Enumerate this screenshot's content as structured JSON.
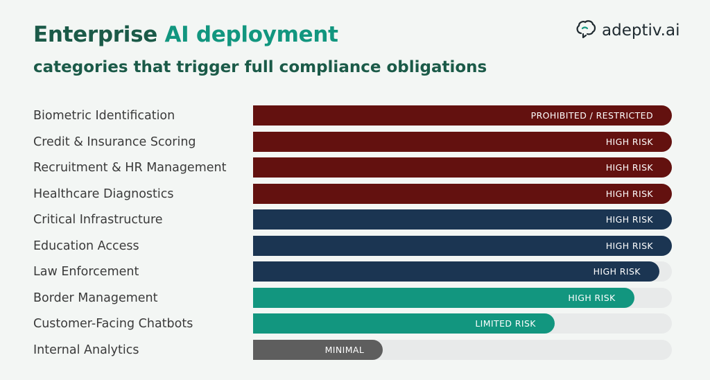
{
  "header": {
    "title_part1": "Enterprise ",
    "title_part2": "AI deployment",
    "subtitle": "categories that trigger full compliance obligations"
  },
  "logo": {
    "text": "adeptiv.ai",
    "icon": "brain-icon"
  },
  "colors": {
    "restricted": "#63110f",
    "high_navy": "#1b3552",
    "high_teal": "#12967f",
    "minimal": "#5e5e5e",
    "track": "#e8eaea"
  },
  "chart_data": {
    "type": "bar",
    "orientation": "horizontal",
    "categories": [
      "Biometric Identification",
      "Credit & Insurance Scoring",
      "Recruitment & HR Management",
      "Healthcare Diagnostics",
      "Critical Infrastructure",
      "Education Access",
      "Law Enforcement",
      "Border Management",
      "Customer-Facing Chatbots",
      "Internal Analytics"
    ],
    "values": [
      100,
      100,
      100,
      100,
      100,
      100,
      97,
      91,
      72,
      31
    ],
    "bar_labels": [
      "PROHIBITED / RESTRICTED",
      "HIGH RISK",
      "HIGH RISK",
      "HIGH RISK",
      "HIGH RISK",
      "HIGH RISK",
      "HIGH RISK",
      "HIGH RISK",
      "LIMITED RISK",
      "MINIMAL"
    ],
    "bar_colors": [
      "#63110f",
      "#63110f",
      "#63110f",
      "#63110f",
      "#1b3552",
      "#1b3552",
      "#1b3552",
      "#12967f",
      "#12967f",
      "#5e5e5e"
    ],
    "xlim": [
      0,
      100
    ],
    "grid": false,
    "legend": "none"
  }
}
